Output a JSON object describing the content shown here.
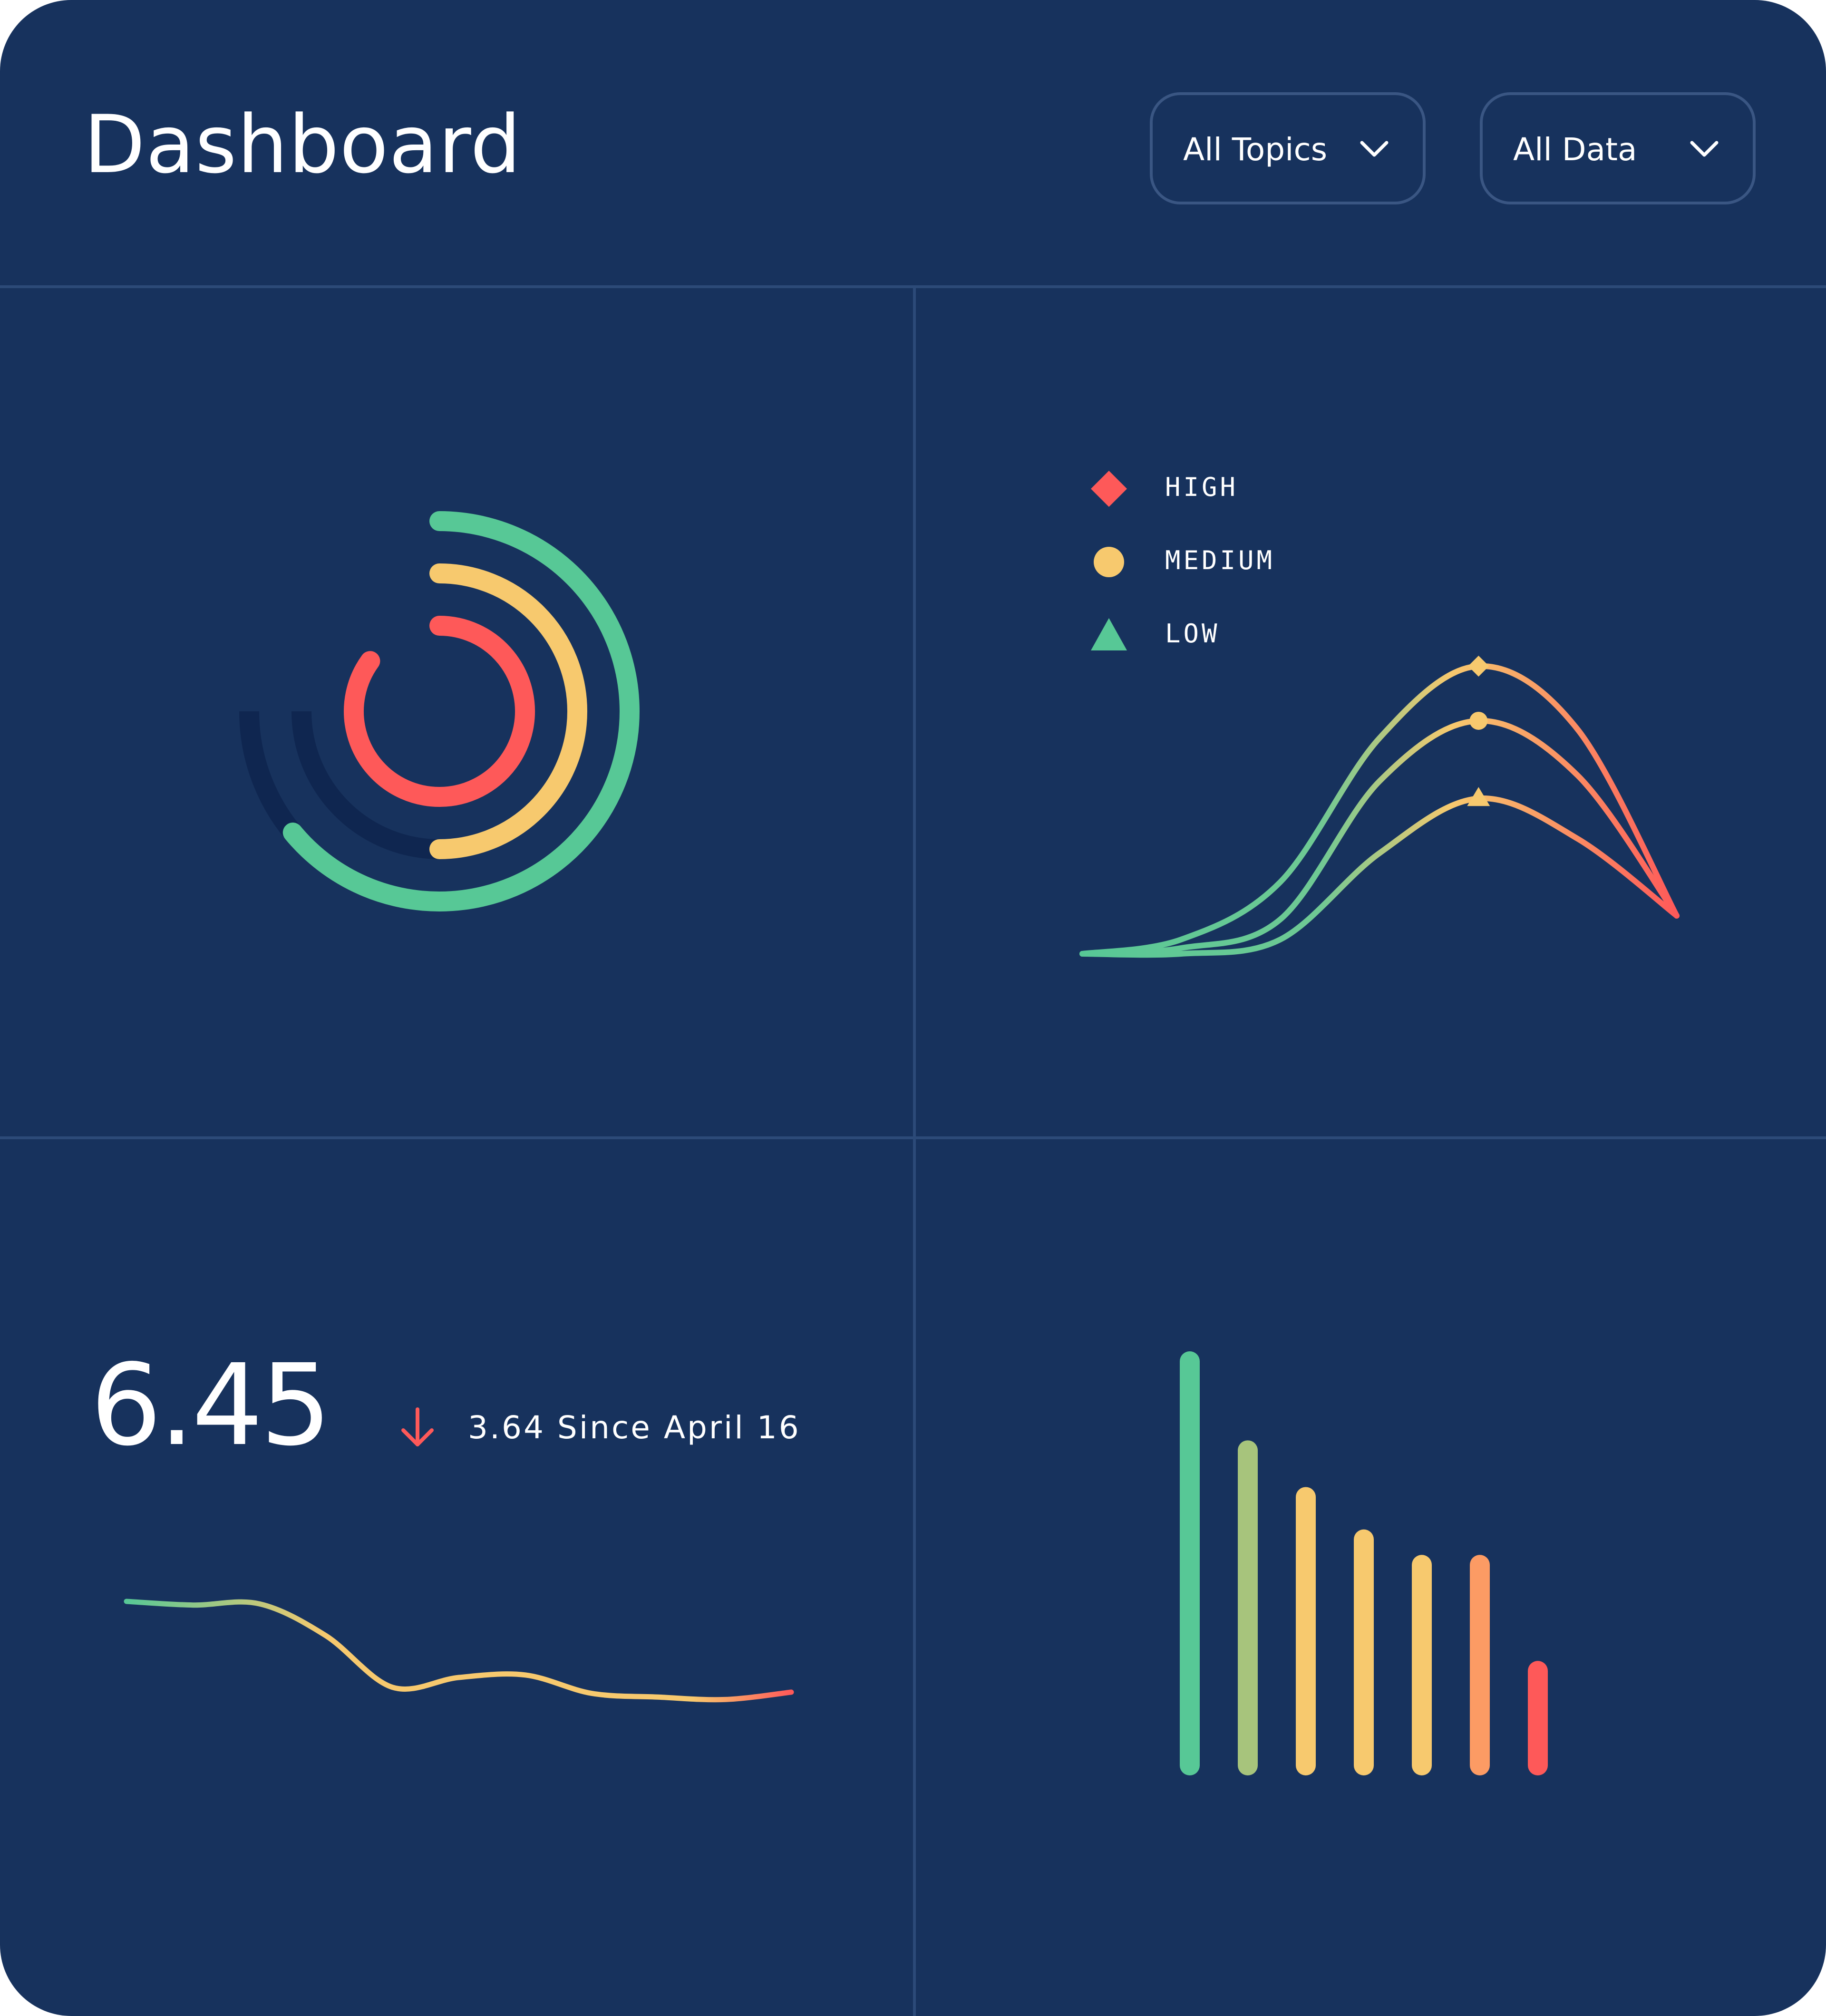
{
  "header": {
    "title": "Dashboard",
    "filters": [
      {
        "label": "All Topics",
        "icon": "chevron-down-icon"
      },
      {
        "label": "All Data",
        "icon": "chevron-down-icon"
      }
    ]
  },
  "colors": {
    "background": "#17325d",
    "divider": "#2c4a78",
    "track": "#0f2650",
    "green": "#57c896",
    "yellow": "#f7c96e",
    "red": "#fe5959",
    "orange": "#fc9b64",
    "olive": "#a7c47c"
  },
  "radial_chart": {
    "rings": [
      {
        "name": "outer",
        "color": "#57c896",
        "fraction": 0.64
      },
      {
        "name": "middle",
        "color": "#f7c96e",
        "fraction": 0.5
      },
      {
        "name": "inner",
        "color": "#fe5959",
        "fraction": 0.85
      }
    ]
  },
  "legend": {
    "items": [
      {
        "label": "HIGH",
        "shape": "diamond",
        "color": "#fe5959"
      },
      {
        "label": "MEDIUM",
        "shape": "circle",
        "color": "#f7c96e"
      },
      {
        "label": "LOW",
        "shape": "triangle",
        "color": "#57c896"
      }
    ]
  },
  "kpi": {
    "value": "6.45",
    "delta_text": "3.64 Since April 16",
    "trend_icon": "arrow-down-icon",
    "trend_color": "#fe5959"
  },
  "chart_data": [
    {
      "type": "line",
      "title": "",
      "series": [
        {
          "name": "HIGH",
          "marker": "diamond",
          "values": [
            0,
            0.05,
            0.25,
            0.75,
            1.0,
            0.78,
            0.1
          ]
        },
        {
          "name": "MEDIUM",
          "marker": "circle",
          "values": [
            0,
            0.02,
            0.12,
            0.6,
            0.81,
            0.62,
            0.1
          ]
        },
        {
          "name": "LOW",
          "marker": "triangle",
          "values": [
            0,
            0.0,
            0.05,
            0.35,
            0.54,
            0.4,
            0.1
          ]
        }
      ],
      "grid": false
    },
    {
      "type": "line",
      "title": "",
      "series": [
        {
          "values": [
            1.0,
            0.97,
            0.98,
            0.72,
            0.3,
            0.38,
            0.4,
            0.25,
            0.22,
            0.2,
            0.26
          ]
        }
      ],
      "grid": false
    },
    {
      "type": "bar",
      "title": "",
      "values": [
        100,
        79,
        68,
        58,
        52,
        52,
        27
      ],
      "colors": [
        "#57c896",
        "#a7c47c",
        "#f7c96e",
        "#f7c96e",
        "#f7c96e",
        "#fc9b64",
        "#fe5959"
      ],
      "grid": false
    }
  ]
}
